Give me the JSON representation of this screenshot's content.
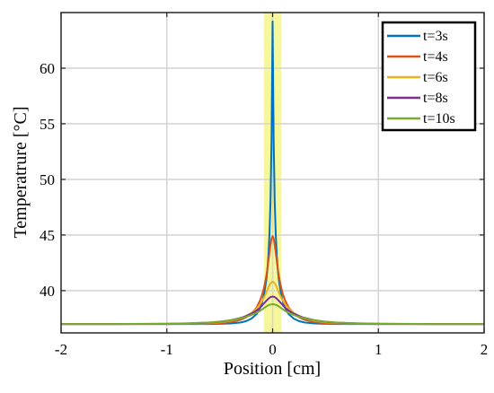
{
  "chart_data": {
    "type": "line",
    "title": "",
    "xlabel": "Position [cm]",
    "ylabel": "Temperatrure [°C]",
    "xlim": [
      -2,
      2
    ],
    "ylim": [
      36.2,
      65
    ],
    "xticks": [
      -2,
      -1,
      0,
      1,
      2
    ],
    "xtick_labels": [
      "-2",
      "-1",
      "0",
      "1",
      "2"
    ],
    "yticks": [
      40,
      45,
      50,
      55,
      60
    ],
    "ytick_labels": [
      "40",
      "45",
      "50",
      "55",
      "60"
    ],
    "grid": true,
    "legend_position": "top-right",
    "highlight_band": {
      "x_range": [
        -0.08,
        0.08
      ],
      "color": "#f5f58a"
    },
    "baseline": 37,
    "x": [
      -2,
      -1.5,
      -1.0,
      -0.8,
      -0.6,
      -0.5,
      -0.4,
      -0.3,
      -0.25,
      -0.2,
      -0.15,
      -0.12,
      -0.1,
      -0.08,
      -0.06,
      -0.05,
      -0.04,
      -0.03,
      -0.02,
      -0.01,
      0,
      0.01,
      0.02,
      0.03,
      0.04,
      0.05,
      0.06,
      0.08,
      0.1,
      0.12,
      0.15,
      0.2,
      0.25,
      0.3,
      0.4,
      0.5,
      0.6,
      0.8,
      1.0,
      1.5,
      2
    ],
    "series": [
      {
        "name": "t=3s",
        "color": "#0072BD",
        "values": [
          37,
          37,
          37,
          37,
          37,
          37.02,
          37.05,
          37.14,
          37.26,
          37.48,
          37.9,
          38.4,
          38.9,
          39.7,
          40.9,
          41.8,
          43.1,
          45.0,
          48.0,
          53.5,
          64.2,
          53.5,
          48.0,
          45.0,
          43.1,
          41.8,
          40.9,
          39.7,
          38.9,
          38.4,
          37.9,
          37.48,
          37.26,
          37.14,
          37.05,
          37.02,
          37,
          37,
          37,
          37,
          37
        ]
      },
      {
        "name": "t=4s",
        "color": "#D95319",
        "values": [
          37,
          37,
          37,
          37.01,
          37.03,
          37.07,
          37.16,
          37.38,
          37.6,
          37.95,
          38.5,
          39.1,
          39.6,
          40.3,
          41.3,
          41.9,
          42.6,
          43.4,
          44.1,
          44.7,
          44.9,
          44.7,
          44.1,
          43.4,
          42.6,
          41.9,
          41.3,
          40.3,
          39.6,
          39.1,
          38.5,
          37.95,
          37.6,
          37.38,
          37.16,
          37.07,
          37.03,
          37.01,
          37,
          37,
          37
        ]
      },
      {
        "name": "t=6s",
        "color": "#EDB120",
        "values": [
          37,
          37,
          37.01,
          37.03,
          37.08,
          37.15,
          37.28,
          37.52,
          37.72,
          38.0,
          38.4,
          38.75,
          39.05,
          39.4,
          39.8,
          40.05,
          40.3,
          40.5,
          40.65,
          40.75,
          40.8,
          40.75,
          40.65,
          40.5,
          40.3,
          40.05,
          39.8,
          39.4,
          39.05,
          38.75,
          38.4,
          38.0,
          37.72,
          37.52,
          37.28,
          37.15,
          37.08,
          37.03,
          37.01,
          37,
          37
        ]
      },
      {
        "name": "t=8s",
        "color": "#7E2F8E",
        "values": [
          37,
          37,
          37.02,
          37.05,
          37.12,
          37.2,
          37.33,
          37.55,
          37.72,
          37.93,
          38.22,
          38.45,
          38.65,
          38.87,
          39.08,
          39.18,
          39.27,
          39.35,
          39.41,
          39.45,
          39.47,
          39.45,
          39.41,
          39.35,
          39.27,
          39.18,
          39.08,
          38.87,
          38.65,
          38.45,
          38.22,
          37.93,
          37.72,
          37.55,
          37.33,
          37.2,
          37.12,
          37.05,
          37.02,
          37,
          37
        ]
      },
      {
        "name": "t=10s",
        "color": "#77AC30",
        "values": [
          37,
          37,
          37.03,
          37.07,
          37.14,
          37.22,
          37.33,
          37.51,
          37.64,
          37.81,
          38.02,
          38.17,
          38.3,
          38.44,
          38.57,
          38.63,
          38.68,
          38.72,
          38.75,
          38.77,
          38.78,
          38.77,
          38.75,
          38.72,
          38.68,
          38.63,
          38.57,
          38.44,
          38.3,
          38.17,
          38.02,
          37.81,
          37.64,
          37.51,
          37.33,
          37.22,
          37.14,
          37.07,
          37.03,
          37,
          37
        ]
      }
    ]
  }
}
